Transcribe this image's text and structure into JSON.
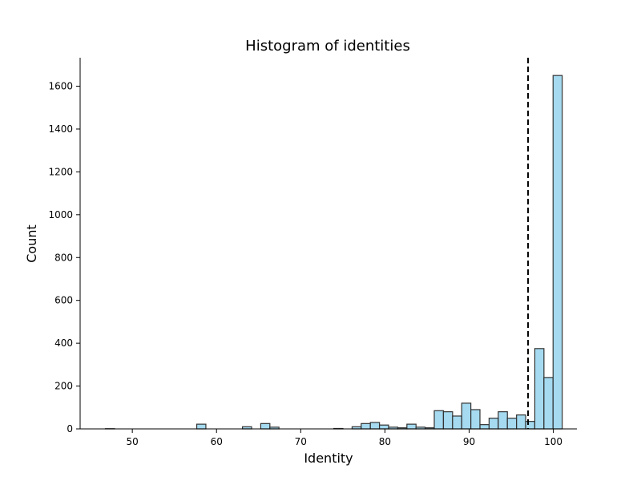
{
  "chart_data": {
    "type": "bar",
    "title": "Histogram of identities",
    "xlabel": "Identity",
    "ylabel": "Count",
    "xlim": [
      43.8,
      102.8
    ],
    "ylim": [
      0,
      1733
    ],
    "x_ticks": [
      50,
      60,
      70,
      80,
      90,
      100
    ],
    "y_ticks": [
      0,
      200,
      400,
      600,
      800,
      1000,
      1200,
      1400,
      1600
    ],
    "bin_width": 1.085,
    "bins": [
      {
        "x0": 46.8,
        "count": 1
      },
      {
        "x0": 57.65,
        "count": 22
      },
      {
        "x0": 63.08,
        "count": 10
      },
      {
        "x0": 65.25,
        "count": 25
      },
      {
        "x0": 66.33,
        "count": 8
      },
      {
        "x0": 73.93,
        "count": 2
      },
      {
        "x0": 76.1,
        "count": 10
      },
      {
        "x0": 77.18,
        "count": 25
      },
      {
        "x0": 78.27,
        "count": 30
      },
      {
        "x0": 79.35,
        "count": 18
      },
      {
        "x0": 80.44,
        "count": 8
      },
      {
        "x0": 81.52,
        "count": 5
      },
      {
        "x0": 82.61,
        "count": 22
      },
      {
        "x0": 83.69,
        "count": 8
      },
      {
        "x0": 84.78,
        "count": 5
      },
      {
        "x0": 85.86,
        "count": 85
      },
      {
        "x0": 86.95,
        "count": 80
      },
      {
        "x0": 88.03,
        "count": 60
      },
      {
        "x0": 89.12,
        "count": 120
      },
      {
        "x0": 90.2,
        "count": 90
      },
      {
        "x0": 91.29,
        "count": 20
      },
      {
        "x0": 92.37,
        "count": 50
      },
      {
        "x0": 93.46,
        "count": 80
      },
      {
        "x0": 94.54,
        "count": 50
      },
      {
        "x0": 95.63,
        "count": 65
      },
      {
        "x0": 96.71,
        "count": 35
      },
      {
        "x0": 97.8,
        "count": 375
      },
      {
        "x0": 98.88,
        "count": 240
      },
      {
        "x0": 99.97,
        "count": 1650
      }
    ],
    "threshold_line": {
      "x": 97.0,
      "style": "dashed"
    },
    "colors": {
      "bar_fill": "#87CEEB",
      "bar_stroke": "#333333",
      "line": "#000000"
    },
    "grid": false,
    "spines": "left-bottom"
  }
}
